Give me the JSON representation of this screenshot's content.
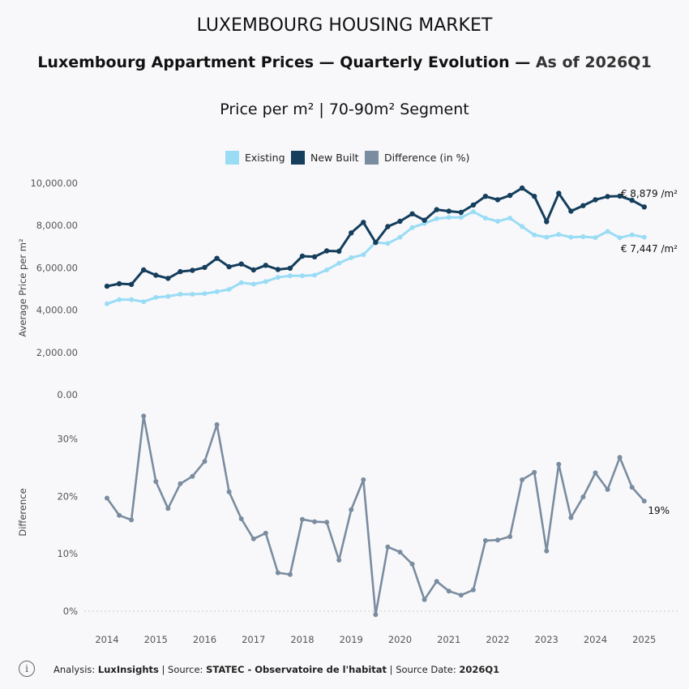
{
  "chart_data": {
    "type": "line",
    "supertitle": "LUXEMBOURG HOUSING MARKET",
    "title_main": "Luxembourg Appartment Prices — Quarterly Evolution — ",
    "title_suffix": "As of 2026Q1",
    "subtitle": "Price per m² | 70-90m² Segment",
    "ylabel_top": "Average Price per m²",
    "ylabel_bottom": "Difference",
    "top_y_ticks": [
      "10,000.00",
      "8,000.00",
      "6,000.00",
      "4,000.00",
      "2,000.00",
      "0.00"
    ],
    "bottom_y_ticks": [
      "30%",
      "20%",
      "10%",
      "0%"
    ],
    "x_ticks": [
      "2014",
      "2015",
      "2016",
      "2017",
      "2018",
      "2019",
      "2020",
      "2021",
      "2022",
      "2023",
      "2024",
      "2025"
    ],
    "top_ylim": [
      0,
      10000
    ],
    "bottom_ylim": [
      -1,
      34
    ],
    "x_start": 2014.0,
    "x_step": 0.25,
    "legend": [
      "Existing",
      "New Built",
      "Difference (in %)"
    ],
    "colors": {
      "existing": "#9bdcf5",
      "new_built": "#143e5c",
      "difference": "#7a8ca0"
    },
    "series": [
      {
        "name": "Existing",
        "values": [
          4300,
          4500,
          4500,
          4400,
          4600,
          4650,
          4750,
          4750,
          4780,
          4870,
          4980,
          5300,
          5230,
          5350,
          5550,
          5620,
          5620,
          5650,
          5900,
          6220,
          6480,
          6620,
          7200,
          7150,
          7450,
          7900,
          8100,
          8320,
          8380,
          8380,
          8650,
          8350,
          8200,
          8350,
          7950,
          7550,
          7450,
          7580,
          7450,
          7470,
          7430,
          7720,
          7420,
          7560,
          7447
        ]
      },
      {
        "name": "New Built",
        "values": [
          5130,
          5250,
          5220,
          5900,
          5650,
          5500,
          5820,
          5880,
          6020,
          6450,
          6050,
          6180,
          5900,
          6120,
          5920,
          5980,
          6550,
          6520,
          6800,
          6780,
          7650,
          8150,
          7200,
          7950,
          8200,
          8550,
          8250,
          8750,
          8680,
          8620,
          8970,
          9380,
          9220,
          9420,
          9770,
          9380,
          8180,
          9520,
          8680,
          8940,
          9220,
          9370,
          9390,
          9190,
          8879
        ]
      },
      {
        "name": "Difference (in %)",
        "values": [
          19.7,
          16.7,
          15.9,
          34.0,
          22.6,
          17.9,
          22.2,
          23.5,
          26.1,
          32.5,
          20.8,
          16.1,
          12.6,
          13.6,
          6.7,
          6.4,
          16.0,
          15.6,
          15.5,
          8.9,
          17.7,
          22.9,
          -0.6,
          11.2,
          10.3,
          8.2,
          2.0,
          5.2,
          3.5,
          2.8,
          3.7,
          12.3,
          12.4,
          13.0,
          22.9,
          24.2,
          10.5,
          25.6,
          16.3,
          19.9,
          24.1,
          21.2,
          26.8,
          21.6,
          19.2
        ]
      }
    ],
    "end_labels": {
      "new_built": "€ 8,879 /m²",
      "existing": "€ 7,447 /m²",
      "difference": "19%"
    }
  },
  "footer": {
    "info_glyph": "i",
    "prefix": "Analysis: ",
    "analyst": "LuxInsights",
    "source_prefix": " | Source: ",
    "source": "STATEC - Observatoire de l'habitat",
    "date_prefix": " | Source Date: ",
    "date": "2026Q1"
  }
}
